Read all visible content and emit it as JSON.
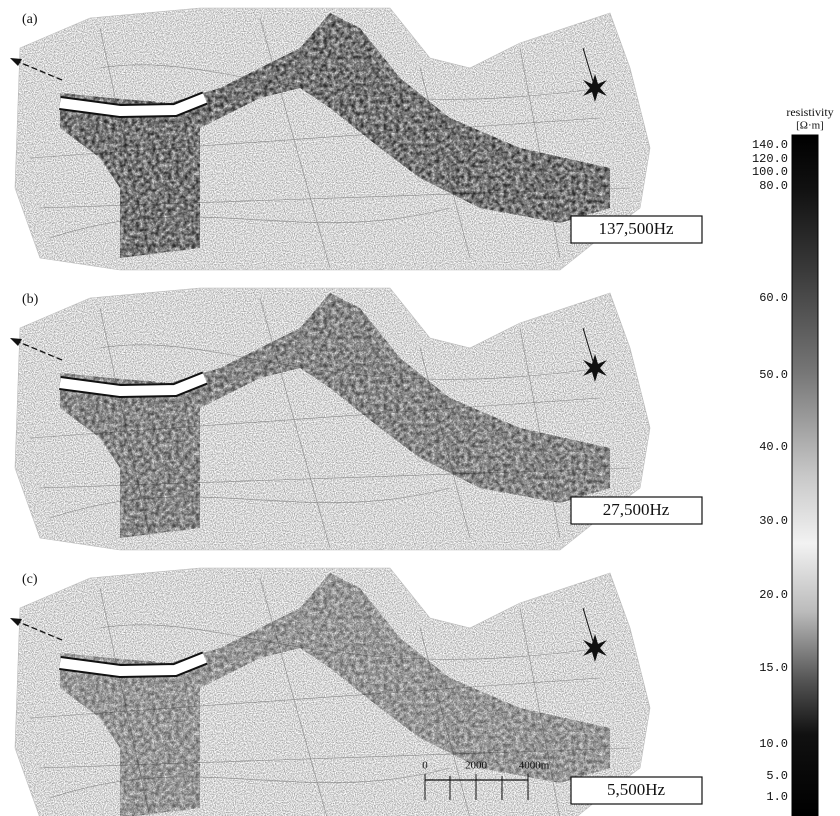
{
  "panels": [
    {
      "label": "(a)",
      "frequency": "137,500Hz"
    },
    {
      "label": "(b)",
      "frequency": "27,500Hz"
    },
    {
      "label": "(c)",
      "frequency": "5,500Hz"
    }
  ],
  "colorbar": {
    "title": "resistivity",
    "unit": "[Ω·m]",
    "ticks": [
      "140.0",
      "120.0",
      "100.0",
      "80.0",
      "60.0",
      "50.0",
      "40.0",
      "30.0",
      "20.0",
      "15.0",
      "10.0",
      "5.0",
      "1.0"
    ]
  },
  "scale_bar": {
    "labels": [
      "0",
      "2000",
      "4000m"
    ]
  }
}
